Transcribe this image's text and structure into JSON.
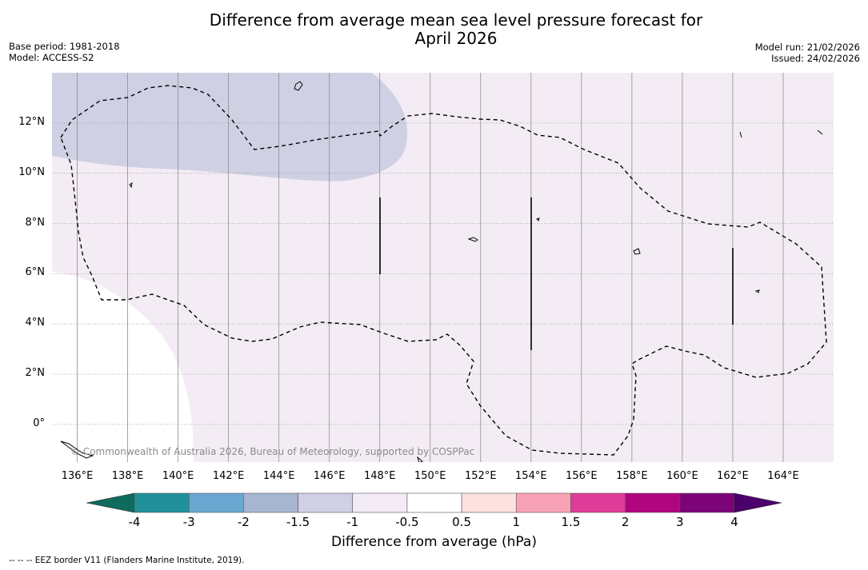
{
  "title": "Difference from average mean sea level pressure forecast for\nApril 2026",
  "title_line1": "Difference from average mean sea level pressure forecast for",
  "title_line2": "April 2026",
  "meta_left": {
    "base_period": "Base period: 1981-2018",
    "model": "Model: ACCESS-S2"
  },
  "meta_right": {
    "model_run": "Model run: 21/02/2026",
    "issued": "Issued: 24/02/2026"
  },
  "map": {
    "lon_labels": [
      "136°E",
      "138°E",
      "140°E",
      "142°E",
      "144°E",
      "146°E",
      "148°E",
      "150°E",
      "152°E",
      "154°E",
      "156°E",
      "158°E",
      "160°E",
      "162°E",
      "164°E"
    ],
    "lon_values": [
      136,
      138,
      140,
      142,
      144,
      146,
      148,
      150,
      152,
      154,
      156,
      158,
      160,
      162,
      164
    ],
    "lat_labels": [
      "12°N",
      "10°N",
      "8°N",
      "6°N",
      "4°N",
      "2°N",
      "0°"
    ],
    "lat_values": [
      12,
      10,
      8,
      6,
      4,
      2,
      0
    ],
    "lon_range": [
      135,
      166
    ],
    "lat_range": [
      -1.5,
      14
    ],
    "regions": [
      {
        "name": "-1.5 to -1",
        "color": "#cfd0e3"
      },
      {
        "name": "-1 to -0.5",
        "color": "#f4ecf5"
      },
      {
        "name": "-0.5 to 0.5",
        "color": "#ffffff"
      }
    ]
  },
  "copyright": "© Commonwealth of Australia 2026, Bureau of Meteorology, supported by COSPPac",
  "colorbar": {
    "labels": [
      "-4",
      "-3",
      "-2",
      "-1.5",
      "-1",
      "-0.5",
      "0.5",
      "1",
      "1.5",
      "2",
      "3",
      "4"
    ],
    "colors": [
      "#0f6b5e",
      "#21909a",
      "#6aa7d1",
      "#a6b5d0",
      "#cfd0e3",
      "#f4ecf5",
      "#ffffff",
      "#fde0e0",
      "#f8a2b8",
      "#de3c98",
      "#b0057f",
      "#7c0478",
      "#4b006a"
    ],
    "title": "Difference from average (hPa)"
  },
  "footnote": "--  --  -- EEZ border V11 (Flanders Marine Institute, 2019)."
}
